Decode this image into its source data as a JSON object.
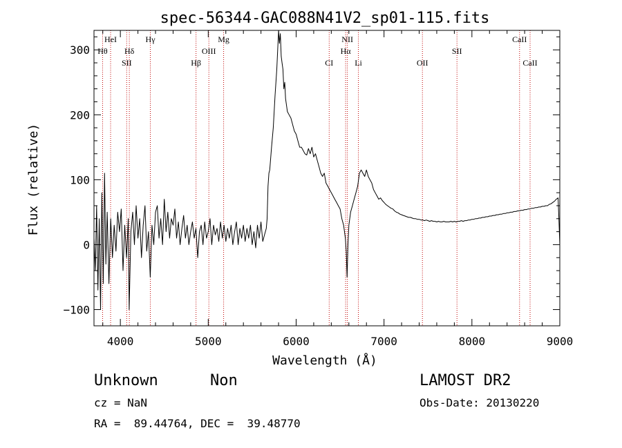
{
  "chart_data": {
    "type": "line",
    "title": "spec-56344-GAC088N41V2_sp01-115.fits",
    "xlabel": "Wavelength (Å)",
    "ylabel": "Flux (relative)",
    "xlim": [
      3700,
      9000
    ],
    "ylim": [
      -125,
      330
    ],
    "xticks": [
      4000,
      5000,
      6000,
      7000,
      8000,
      9000
    ],
    "yticks": [
      -100,
      0,
      100,
      200,
      300
    ],
    "grid": false,
    "series": [
      {
        "points": [
          [
            3700,
            10
          ],
          [
            3715,
            -40
          ],
          [
            3730,
            60
          ],
          [
            3745,
            -70
          ],
          [
            3760,
            40
          ],
          [
            3775,
            -100
          ],
          [
            3790,
            80
          ],
          [
            3805,
            -60
          ],
          [
            3820,
            110
          ],
          [
            3835,
            -30
          ],
          [
            3850,
            50
          ],
          [
            3870,
            -60
          ],
          [
            3890,
            40
          ],
          [
            3910,
            -20
          ],
          [
            3930,
            30
          ],
          [
            3950,
            -10
          ],
          [
            3970,
            50
          ],
          [
            3990,
            20
          ],
          [
            4010,
            55
          ],
          [
            4030,
            -40
          ],
          [
            4050,
            30
          ],
          [
            4070,
            -20
          ],
          [
            4090,
            40
          ],
          [
            4100,
            -100
          ],
          [
            4120,
            20
          ],
          [
            4140,
            50
          ],
          [
            4160,
            0
          ],
          [
            4180,
            60
          ],
          [
            4200,
            10
          ],
          [
            4220,
            40
          ],
          [
            4240,
            -20
          ],
          [
            4260,
            30
          ],
          [
            4280,
            60
          ],
          [
            4300,
            -10
          ],
          [
            4320,
            20
          ],
          [
            4340,
            -50
          ],
          [
            4360,
            30
          ],
          [
            4380,
            0
          ],
          [
            4400,
            50
          ],
          [
            4420,
            60
          ],
          [
            4440,
            10
          ],
          [
            4460,
            40
          ],
          [
            4480,
            0
          ],
          [
            4500,
            70
          ],
          [
            4520,
            20
          ],
          [
            4540,
            50
          ],
          [
            4560,
            10
          ],
          [
            4580,
            40
          ],
          [
            4600,
            30
          ],
          [
            4620,
            55
          ],
          [
            4640,
            10
          ],
          [
            4660,
            35
          ],
          [
            4680,
            0
          ],
          [
            4700,
            25
          ],
          [
            4720,
            45
          ],
          [
            4740,
            10
          ],
          [
            4760,
            30
          ],
          [
            4780,
            0
          ],
          [
            4800,
            20
          ],
          [
            4820,
            35
          ],
          [
            4840,
            10
          ],
          [
            4860,
            25
          ],
          [
            4880,
            -20
          ],
          [
            4900,
            20
          ],
          [
            4920,
            30
          ],
          [
            4940,
            0
          ],
          [
            4960,
            35
          ],
          [
            4980,
            10
          ],
          [
            5000,
            20
          ],
          [
            5020,
            40
          ],
          [
            5040,
            0
          ],
          [
            5060,
            30
          ],
          [
            5080,
            15
          ],
          [
            5100,
            25
          ],
          [
            5120,
            5
          ],
          [
            5140,
            35
          ],
          [
            5160,
            10
          ],
          [
            5180,
            30
          ],
          [
            5200,
            5
          ],
          [
            5220,
            25
          ],
          [
            5240,
            10
          ],
          [
            5260,
            30
          ],
          [
            5280,
            0
          ],
          [
            5300,
            20
          ],
          [
            5320,
            35
          ],
          [
            5340,
            0
          ],
          [
            5360,
            25
          ],
          [
            5380,
            10
          ],
          [
            5400,
            30
          ],
          [
            5420,
            5
          ],
          [
            5440,
            25
          ],
          [
            5460,
            10
          ],
          [
            5480,
            30
          ],
          [
            5500,
            0
          ],
          [
            5520,
            20
          ],
          [
            5540,
            -5
          ],
          [
            5560,
            30
          ],
          [
            5580,
            10
          ],
          [
            5600,
            35
          ],
          [
            5620,
            5
          ],
          [
            5640,
            15
          ],
          [
            5660,
            25
          ],
          [
            5670,
            40
          ],
          [
            5680,
            90
          ],
          [
            5690,
            110
          ],
          [
            5700,
            115
          ],
          [
            5720,
            150
          ],
          [
            5740,
            180
          ],
          [
            5760,
            230
          ],
          [
            5780,
            270
          ],
          [
            5790,
            300
          ],
          [
            5800,
            330
          ],
          [
            5810,
            310
          ],
          [
            5820,
            325
          ],
          [
            5830,
            290
          ],
          [
            5840,
            280
          ],
          [
            5850,
            270
          ],
          [
            5860,
            240
          ],
          [
            5870,
            250
          ],
          [
            5880,
            225
          ],
          [
            5900,
            205
          ],
          [
            5920,
            200
          ],
          [
            5940,
            195
          ],
          [
            5960,
            185
          ],
          [
            5980,
            175
          ],
          [
            6000,
            170
          ],
          [
            6020,
            160
          ],
          [
            6040,
            150
          ],
          [
            6060,
            150
          ],
          [
            6080,
            145
          ],
          [
            6100,
            140
          ],
          [
            6120,
            138
          ],
          [
            6140,
            148
          ],
          [
            6160,
            140
          ],
          [
            6180,
            150
          ],
          [
            6200,
            135
          ],
          [
            6220,
            140
          ],
          [
            6240,
            130
          ],
          [
            6260,
            120
          ],
          [
            6280,
            110
          ],
          [
            6300,
            105
          ],
          [
            6320,
            110
          ],
          [
            6340,
            95
          ],
          [
            6360,
            90
          ],
          [
            6380,
            85
          ],
          [
            6400,
            80
          ],
          [
            6420,
            75
          ],
          [
            6440,
            70
          ],
          [
            6460,
            65
          ],
          [
            6480,
            60
          ],
          [
            6500,
            55
          ],
          [
            6520,
            40
          ],
          [
            6540,
            30
          ],
          [
            6560,
            10
          ],
          [
            6570,
            -10
          ],
          [
            6580,
            -50
          ],
          [
            6590,
            0
          ],
          [
            6600,
            30
          ],
          [
            6620,
            50
          ],
          [
            6640,
            60
          ],
          [
            6660,
            70
          ],
          [
            6680,
            80
          ],
          [
            6700,
            90
          ],
          [
            6720,
            110
          ],
          [
            6740,
            115
          ],
          [
            6760,
            110
          ],
          [
            6780,
            105
          ],
          [
            6800,
            115
          ],
          [
            6820,
            105
          ],
          [
            6840,
            100
          ],
          [
            6860,
            95
          ],
          [
            6880,
            85
          ],
          [
            6900,
            80
          ],
          [
            6920,
            75
          ],
          [
            6940,
            70
          ],
          [
            6960,
            72
          ],
          [
            6980,
            68
          ],
          [
            7000,
            65
          ],
          [
            7020,
            62
          ],
          [
            7040,
            60
          ],
          [
            7060,
            58
          ],
          [
            7080,
            56
          ],
          [
            7100,
            55
          ],
          [
            7120,
            52
          ],
          [
            7140,
            50
          ],
          [
            7160,
            49
          ],
          [
            7180,
            47
          ],
          [
            7200,
            46
          ],
          [
            7220,
            45
          ],
          [
            7240,
            44
          ],
          [
            7260,
            43
          ],
          [
            7280,
            42
          ],
          [
            7300,
            42
          ],
          [
            7320,
            41
          ],
          [
            7340,
            40
          ],
          [
            7360,
            40
          ],
          [
            7380,
            39
          ],
          [
            7400,
            39
          ],
          [
            7420,
            38
          ],
          [
            7440,
            38
          ],
          [
            7460,
            37
          ],
          [
            7480,
            38
          ],
          [
            7500,
            37
          ],
          [
            7520,
            36
          ],
          [
            7540,
            37
          ],
          [
            7560,
            36
          ],
          [
            7580,
            36
          ],
          [
            7600,
            35
          ],
          [
            7620,
            36
          ],
          [
            7640,
            35
          ],
          [
            7660,
            35
          ],
          [
            7680,
            36
          ],
          [
            7700,
            35
          ],
          [
            7720,
            35
          ],
          [
            7740,
            35
          ],
          [
            7760,
            36
          ],
          [
            7780,
            35
          ],
          [
            7800,
            36
          ],
          [
            7820,
            35
          ],
          [
            7840,
            36
          ],
          [
            7860,
            36
          ],
          [
            7880,
            37
          ],
          [
            7900,
            36
          ],
          [
            7920,
            37
          ],
          [
            7940,
            37
          ],
          [
            7960,
            38
          ],
          [
            7980,
            38
          ],
          [
            8000,
            39
          ],
          [
            8020,
            39
          ],
          [
            8040,
            40
          ],
          [
            8060,
            40
          ],
          [
            8080,
            41
          ],
          [
            8100,
            41
          ],
          [
            8120,
            42
          ],
          [
            8140,
            42
          ],
          [
            8160,
            43
          ],
          [
            8180,
            43
          ],
          [
            8200,
            44
          ],
          [
            8220,
            44
          ],
          [
            8240,
            45
          ],
          [
            8260,
            45
          ],
          [
            8280,
            46
          ],
          [
            8300,
            46
          ],
          [
            8320,
            47
          ],
          [
            8340,
            47
          ],
          [
            8360,
            48
          ],
          [
            8380,
            48
          ],
          [
            8400,
            49
          ],
          [
            8420,
            49
          ],
          [
            8440,
            50
          ],
          [
            8460,
            50
          ],
          [
            8480,
            51
          ],
          [
            8500,
            51
          ],
          [
            8520,
            52
          ],
          [
            8540,
            52
          ],
          [
            8560,
            53
          ],
          [
            8580,
            53
          ],
          [
            8600,
            54
          ],
          [
            8620,
            54
          ],
          [
            8640,
            55
          ],
          [
            8660,
            55
          ],
          [
            8680,
            56
          ],
          [
            8700,
            56
          ],
          [
            8720,
            57
          ],
          [
            8740,
            57
          ],
          [
            8760,
            58
          ],
          [
            8780,
            58
          ],
          [
            8800,
            59
          ],
          [
            8820,
            59
          ],
          [
            8840,
            60
          ],
          [
            8860,
            60
          ],
          [
            8880,
            62
          ],
          [
            8900,
            63
          ],
          [
            8920,
            65
          ],
          [
            8940,
            67
          ],
          [
            8960,
            70
          ],
          [
            8980,
            72
          ],
          [
            8990,
            40
          ],
          [
            9000,
            0
          ]
        ]
      }
    ],
    "lines": [
      {
        "label": "Hθ",
        "x": 3798,
        "row": 2
      },
      {
        "label": "HeI",
        "x": 3889,
        "row": 1
      },
      {
        "label": "SII",
        "x": 4072,
        "row": 3
      },
      {
        "label": "Hδ",
        "x": 4102,
        "row": 2
      },
      {
        "label": "Hγ",
        "x": 4341,
        "row": 1
      },
      {
        "label": "Hβ",
        "x": 4861,
        "row": 3
      },
      {
        "label": "OIII",
        "x": 5007,
        "row": 2
      },
      {
        "label": "Mg",
        "x": 5175,
        "row": 1
      },
      {
        "label": "CI",
        "x": 6376,
        "row": 3
      },
      {
        "label": "NII",
        "x": 6583,
        "row": 1
      },
      {
        "label": "Hα",
        "x": 6563,
        "row": 2
      },
      {
        "label": "Li",
        "x": 6708,
        "row": 3
      },
      {
        "label": "OII",
        "x": 7437,
        "row": 3
      },
      {
        "label": "SII",
        "x": 7830,
        "row": 2
      },
      {
        "label": "CaII",
        "x": 8542,
        "row": 1
      },
      {
        "label": "CaII",
        "x": 8662,
        "row": 3
      }
    ]
  },
  "footer": {
    "class_text": "Unknown",
    "subclass_text": "Non",
    "survey": "LAMOST DR2",
    "cz": "cz = NaN",
    "obs_date": "Obs-Date: 20130220",
    "coords": "RA =  89.44764, DEC =  39.48770"
  },
  "colors": {
    "spectrum": "#000000",
    "line_marker": "#c00000"
  }
}
